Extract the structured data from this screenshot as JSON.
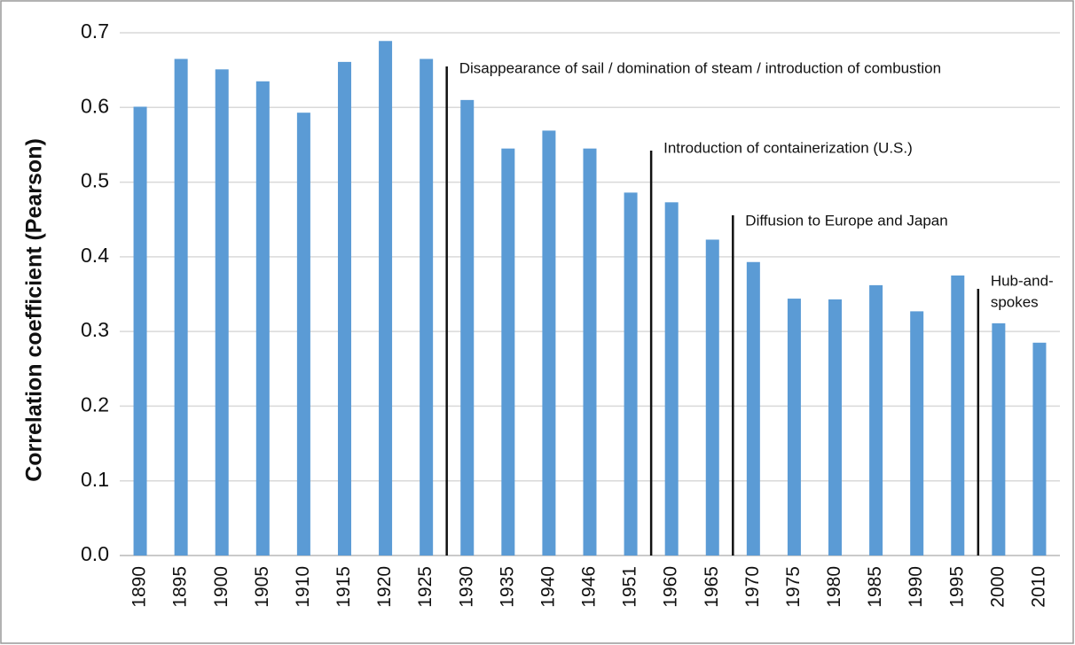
{
  "chart_data": {
    "type": "bar",
    "y_label": "Correlation coefficient (Pearson)",
    "categories": [
      "1890",
      "1895",
      "1900",
      "1905",
      "1910",
      "1915",
      "1920",
      "1925",
      "1930",
      "1935",
      "1940",
      "1946",
      "1951",
      "1960",
      "1965",
      "1970",
      "1975",
      "1980",
      "1985",
      "1990",
      "1995",
      "2000",
      "2010"
    ],
    "values": [
      0.601,
      0.665,
      0.651,
      0.635,
      0.593,
      0.661,
      0.689,
      0.665,
      0.61,
      0.545,
      0.569,
      0.545,
      0.486,
      0.473,
      0.423,
      0.393,
      0.344,
      0.343,
      0.362,
      0.327,
      0.375,
      0.311,
      0.285
    ],
    "color": "#5b9bd5",
    "ylim": [
      0,
      0.7
    ],
    "yticks": [
      {
        "value": 0,
        "label": "0.0"
      },
      0.1,
      0.2,
      0.3,
      0.4,
      0.5,
      0.6,
      0.7
    ],
    "grid": true,
    "annotations": [
      [
        "Disappearance of sail / domination of steam / introduction of combustion"
      ],
      [
        "Introduction of containerization (U.S.)"
      ],
      [
        "Diffusion to Europe and Japan"
      ],
      [
        "Hub-and-",
        "spokes"
      ]
    ]
  }
}
